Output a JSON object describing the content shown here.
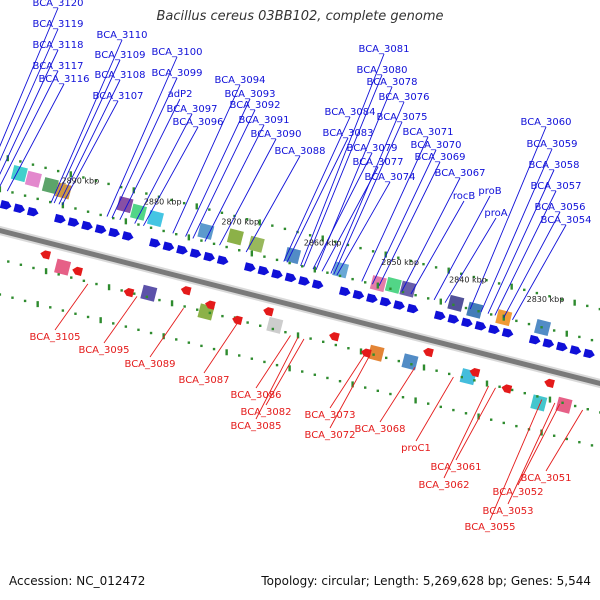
{
  "title": "Bacillus cereus 03BB102, complete genome",
  "accession": "Accession: NC_012472",
  "summary": "Topology: circular; Length: 5,269,628 bp; Genes: 5,544",
  "colors": {
    "forward": "#1010d8",
    "reverse": "#e41a1a",
    "backbone": "#7a7a7a",
    "tick": "#2e8b2e",
    "bg": "#ffffff"
  },
  "kbp_ticks": [
    "2890 kbp",
    "2880 kbp",
    "2870 kbp",
    "2860 kbp",
    "2850 kbp",
    "2840 kbp",
    "2830 kbp"
  ],
  "forward_labels": [
    "BCA_3120",
    "BCA_3119",
    "BCA_3118",
    "BCA_3117",
    "BCA_3116",
    "BCA_3110",
    "BCA_3109",
    "BCA_3108",
    "BCA_3107",
    "BCA_3100",
    "BCA_3099",
    "adP2",
    "BCA_3097",
    "BCA_3096",
    "BCA_3094",
    "BCA_3093",
    "BCA_3092",
    "BCA_3091",
    "BCA_3090",
    "BCA_3088",
    "BCA_3081",
    "BCA_3080",
    "BCA_3078",
    "BCA_3076",
    "BCA_3084",
    "BCA_3075",
    "BCA_3083",
    "BCA_3071",
    "BCA_3079",
    "BCA_3070",
    "BCA_3077",
    "BCA_3069",
    "BCA_3074",
    "BCA_3067",
    "proB",
    "rocB",
    "proA",
    "BCA_3060",
    "BCA_3059",
    "BCA_3058",
    "BCA_3057",
    "BCA_3056",
    "BCA_3054"
  ],
  "reverse_labels": [
    "BCA_3105",
    "BCA_3095",
    "BCA_3089",
    "BCA_3087",
    "BCA_3086",
    "BCA_3082",
    "BCA_3085",
    "BCA_3073",
    "BCA_3072",
    "BCA_3068",
    "proC1",
    "BCA_3061",
    "BCA_3062",
    "BCA_3051",
    "BCA_3052",
    "BCA_3053",
    "BCA_3055"
  ]
}
